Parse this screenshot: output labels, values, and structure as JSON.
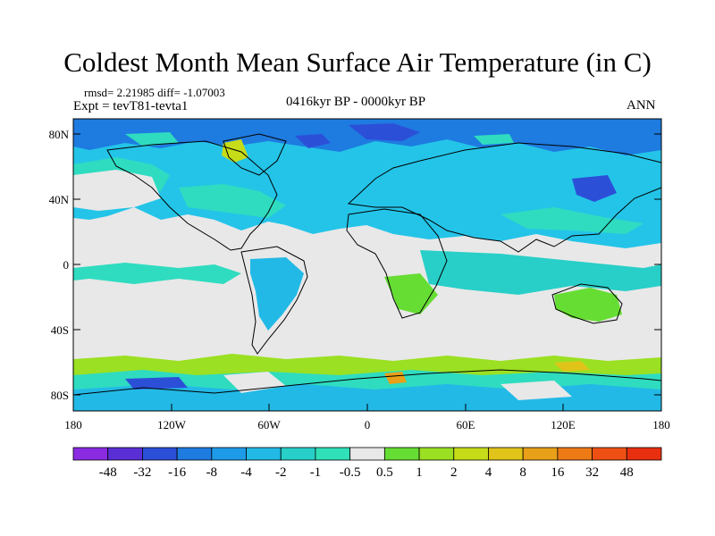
{
  "title": "Coldest Month Mean Surface Air Temperature (in C)",
  "stats": "rmsd= 2.21985 diff= -1.07003",
  "experiment": "Expt = tevT81-tevta1",
  "period": "0416kyr BP - 0000kyr BP",
  "season": "ANN",
  "lat_labels": [
    "80N",
    "40N",
    "0",
    "40S",
    "80S"
  ],
  "lon_labels": [
    "180",
    "120W",
    "60W",
    "0",
    "60E",
    "120E",
    "180"
  ],
  "colorbar": {
    "labels": [
      "-48",
      "-32",
      "-16",
      "-8",
      "-4",
      "-2",
      "-1",
      "-0.5",
      "0.5",
      "1",
      "2",
      "4",
      "8",
      "16",
      "32",
      "48"
    ],
    "colors": [
      "#8a2be2",
      "#5a2fd6",
      "#2c4fd8",
      "#1e7be0",
      "#1e9be8",
      "#22b9e6",
      "#28cfc8",
      "#2fe0b8",
      "#e8e8e8",
      "#66dd33",
      "#9be022",
      "#c6dc18",
      "#e0c41a",
      "#e8a018",
      "#ee7a16",
      "#ee5014",
      "#e83010"
    ]
  }
}
